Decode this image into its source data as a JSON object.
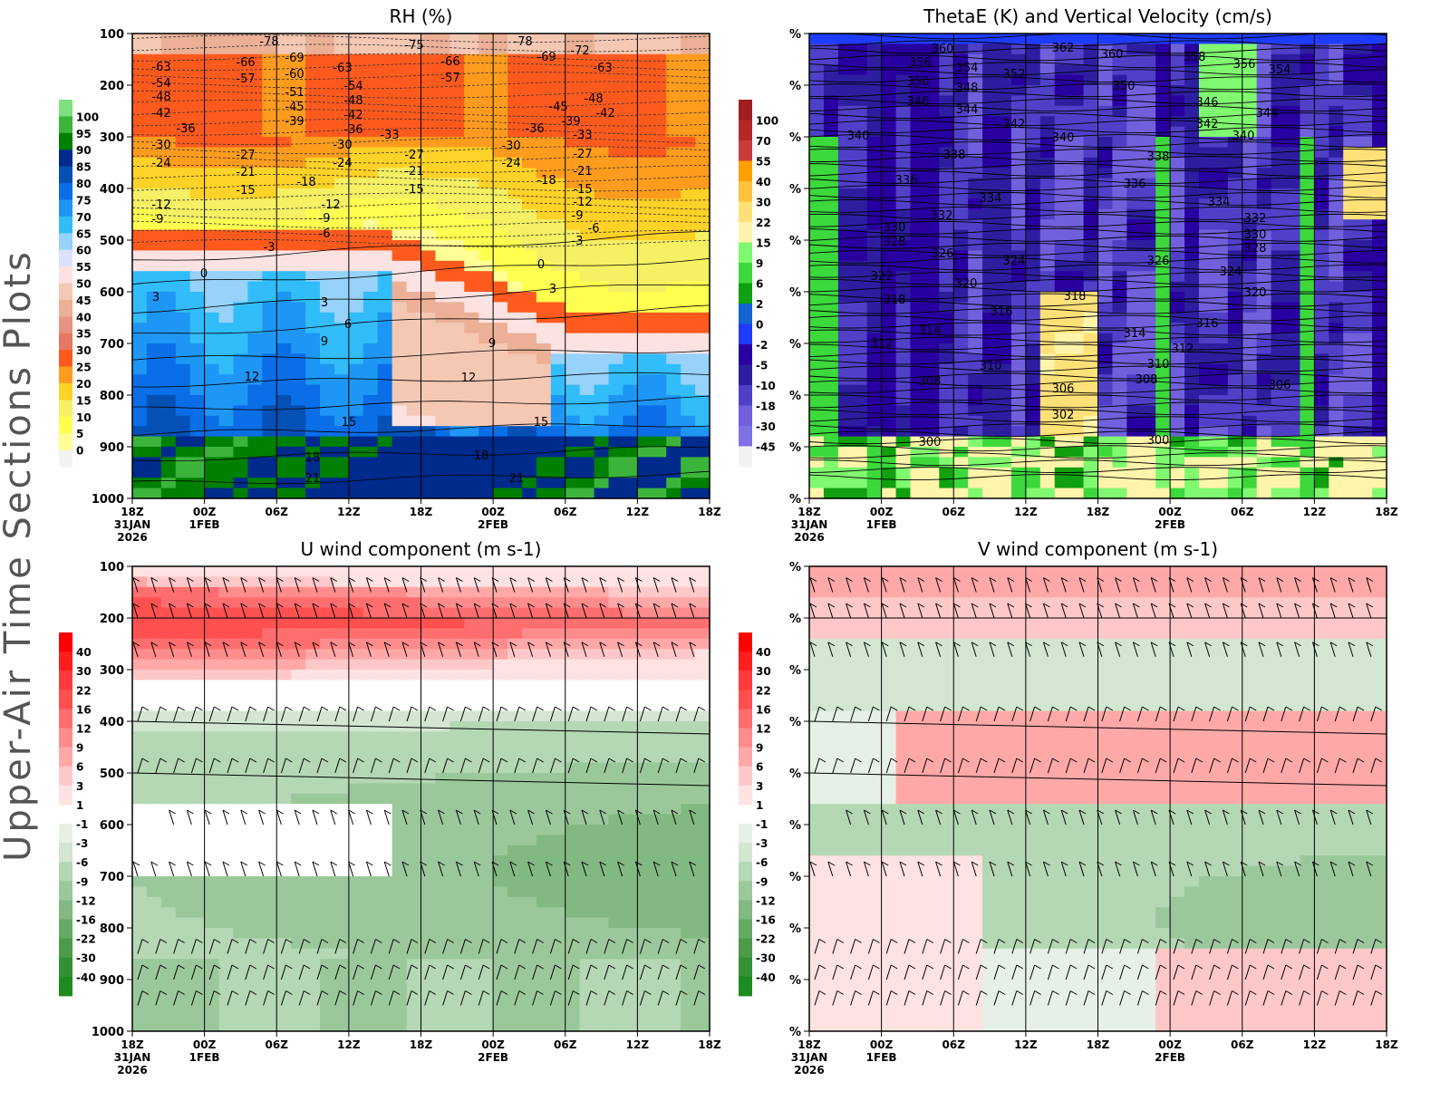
{
  "page_title": "Upper-Air Time Sections Plots",
  "chart_data": [
    {
      "type": "heatmap",
      "title": "RH (%)",
      "x_ticks": [
        [
          "18Z",
          "31JAN",
          "2026"
        ],
        [
          "00Z",
          "1FEB"
        ],
        [
          "06Z"
        ],
        [
          "12Z"
        ],
        [
          "18Z"
        ],
        [
          "00Z",
          "2FEB"
        ],
        [
          "06Z"
        ],
        [
          "12Z"
        ],
        [
          "18Z"
        ]
      ],
      "y_ticks": [
        "100",
        "200",
        "300",
        "400",
        "500",
        "600",
        "700",
        "800",
        "900",
        "1000"
      ],
      "ylim": [
        1000,
        100
      ],
      "colorbar": {
        "labels": [
          "100",
          "95",
          "90",
          "85",
          "80",
          "75",
          "70",
          "65",
          "60",
          "55",
          "50",
          "45",
          "40",
          "35",
          "30",
          "25",
          "20",
          "15",
          "10",
          "5",
          "0"
        ],
        "colors": [
          "#7ee07e",
          "#3cb43c",
          "#008000",
          "#002a8c",
          "#0550b4",
          "#0a6ee6",
          "#1e96f5",
          "#32bcfa",
          "#96d2fa",
          "#dce0fa",
          "#fde2e2",
          "#f5c8b4",
          "#ebb096",
          "#e89482",
          "#e67864",
          "#ff5a1e",
          "#ff9c1e",
          "#ffd228",
          "#f5f064",
          "#ffff50",
          "#ffff96",
          "#f2f2f2"
        ]
      },
      "contour_labels": [
        "-78",
        "-75",
        "-78",
        "-72",
        "-69",
        "-66",
        "-66",
        "-69",
        "-63",
        "-63",
        "-63",
        "-60",
        "-57",
        "-57",
        "-54",
        "-54",
        "-51",
        "-48",
        "-48",
        "-48",
        "-45",
        "-45",
        "-42",
        "-42",
        "-42",
        "-39",
        "-39",
        "-36",
        "-36",
        "-36",
        "-33",
        "-33",
        "-30",
        "-30",
        "-30",
        "-27",
        "-27",
        "-27",
        "-24",
        "-24",
        "-24",
        "-21",
        "-21",
        "-21",
        "-18",
        "-18",
        "-15",
        "-15",
        "-15",
        "-12",
        "-12",
        "-12",
        "-9",
        "-9",
        "-9",
        "-6",
        "-6",
        "-3",
        "-3",
        "0",
        "0",
        "3",
        "3",
        "3",
        "6",
        "9",
        "9",
        "12",
        "12",
        "15",
        "15",
        "18",
        "18",
        "21",
        "21"
      ]
    },
    {
      "type": "heatmap",
      "title": "ThetaE (K) and Vertical Velocity (cm/s)",
      "x_ticks": [
        [
          "18Z",
          "31JAN",
          "2026"
        ],
        [
          "00Z",
          "1FEB"
        ],
        [
          "06Z"
        ],
        [
          "12Z"
        ],
        [
          "18Z"
        ],
        [
          "00Z",
          "2FEB"
        ],
        [
          "06Z"
        ],
        [
          "12Z"
        ],
        [
          "18Z"
        ]
      ],
      "y_ticks": [
        "%",
        "%",
        "%",
        "%",
        "%",
        "%",
        "%",
        "%",
        "%",
        "%"
      ],
      "colorbar": {
        "labels": [
          "100",
          "70",
          "55",
          "40",
          "30",
          "22",
          "15",
          "9",
          "6",
          "2",
          "0",
          "-2",
          "-5",
          "-10",
          "-18",
          "-30",
          "-45"
        ],
        "colors": [
          "#a01e1e",
          "#b42828",
          "#c83c3c",
          "#ffa000",
          "#ffc03c",
          "#ffe178",
          "#fff5aa",
          "#80f870",
          "#3cd83c",
          "#10a010",
          "#1464d2",
          "#1e3cff",
          "#2800a0",
          "#2d1ea0",
          "#5040c8",
          "#7060dc",
          "#8070e6",
          "#f2f2f2"
        ]
      },
      "contour_labels": [
        "360",
        "362",
        "360",
        "356",
        "354",
        "352",
        "358",
        "356",
        "354",
        "350",
        "348",
        "350",
        "346",
        "344",
        "346",
        "344",
        "342",
        "342",
        "340",
        "340",
        "340",
        "338",
        "338",
        "336",
        "336",
        "334",
        "334",
        "332",
        "332",
        "330",
        "330",
        "328",
        "328",
        "326",
        "326",
        "324",
        "324",
        "322",
        "320",
        "320",
        "318",
        "318",
        "316",
        "316",
        "314",
        "314",
        "312",
        "312",
        "310",
        "310",
        "308",
        "308",
        "306",
        "306",
        "302",
        "300",
        "300"
      ]
    },
    {
      "type": "heatmap",
      "title": "U wind component (m s-1)",
      "x_ticks": [
        [
          "18Z",
          "31JAN",
          "2026"
        ],
        [
          "00Z",
          "1FEB"
        ],
        [
          "06Z"
        ],
        [
          "12Z"
        ],
        [
          "18Z"
        ],
        [
          "00Z",
          "2FEB"
        ],
        [
          "06Z"
        ],
        [
          "12Z"
        ],
        [
          "18Z"
        ]
      ],
      "y_ticks": [
        "100",
        "200",
        "300",
        "400",
        "500",
        "600",
        "700",
        "800",
        "900",
        "1000"
      ],
      "ylim": [
        1000,
        100
      ],
      "colorbar": {
        "labels_pos": [
          "40",
          "30",
          "22",
          "16",
          "12",
          "9",
          "6",
          "3",
          "1"
        ],
        "labels_neg": [
          "-1",
          "-3",
          "-6",
          "-9",
          "-12",
          "-16",
          "-22",
          "-30",
          "-40"
        ],
        "colors_pos": [
          "#ff0000",
          "#ff1e1e",
          "#ff3c3c",
          "#ff5050",
          "#ff6e6e",
          "#ff8c8c",
          "#ffa8a8",
          "#ffc8c8",
          "#ffe2e2"
        ],
        "colors_neg": [
          "#e6f0e6",
          "#d2e6d2",
          "#b4d7b4",
          "#9bc89b",
          "#82b982",
          "#64aa64",
          "#4b9b4b",
          "#329132",
          "#1e8c1e"
        ]
      }
    },
    {
      "type": "heatmap",
      "title": "V wind component (m s-1)",
      "x_ticks": [
        [
          "18Z",
          "31JAN",
          "2026"
        ],
        [
          "00Z",
          "1FEB"
        ],
        [
          "06Z"
        ],
        [
          "12Z"
        ],
        [
          "18Z"
        ],
        [
          "00Z",
          "2FEB"
        ],
        [
          "06Z"
        ],
        [
          "12Z"
        ],
        [
          "18Z"
        ]
      ],
      "y_ticks": [
        "%",
        "%",
        "%",
        "%",
        "%",
        "%",
        "%",
        "%",
        "%",
        "%"
      ],
      "colorbar": {
        "labels_pos": [
          "40",
          "30",
          "22",
          "16",
          "12",
          "9",
          "6",
          "3",
          "1"
        ],
        "labels_neg": [
          "-1",
          "-3",
          "-6",
          "-9",
          "-12",
          "-16",
          "-22",
          "-30",
          "-40"
        ],
        "colors_pos": [
          "#ff0000",
          "#ff1e1e",
          "#ff3c3c",
          "#ff5050",
          "#ff6e6e",
          "#ff8c8c",
          "#ffa8a8",
          "#ffc8c8",
          "#ffe2e2"
        ],
        "colors_neg": [
          "#e6f0e6",
          "#d2e6d2",
          "#b4d7b4",
          "#9bc89b",
          "#82b982",
          "#64aa64",
          "#4b9b4b",
          "#329132",
          "#1e8c1e"
        ]
      }
    }
  ]
}
